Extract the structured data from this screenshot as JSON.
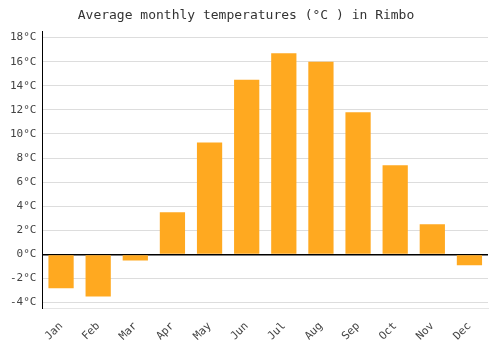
{
  "chart_data": {
    "type": "bar",
    "title": "Average monthly temperatures (°C ) in Rimbo",
    "categories": [
      "Jan",
      "Feb",
      "Mar",
      "Apr",
      "May",
      "Jun",
      "Jul",
      "Aug",
      "Sep",
      "Oct",
      "Nov",
      "Dec"
    ],
    "values": [
      -2.8,
      -3.5,
      -0.5,
      3.5,
      9.3,
      14.5,
      16.7,
      16.0,
      11.8,
      7.4,
      2.5,
      -0.9
    ],
    "color": "#FFA920",
    "ylim": [
      -4.5,
      18.5
    ],
    "yticks": [
      {
        "value": -4,
        "label": "-4°C"
      },
      {
        "value": -2,
        "label": "-2°C"
      },
      {
        "value": 0,
        "label": "0°C"
      },
      {
        "value": 2,
        "label": "2°C"
      },
      {
        "value": 4,
        "label": "4°C"
      },
      {
        "value": 6,
        "label": "6°C"
      },
      {
        "value": 8,
        "label": "8°C"
      },
      {
        "value": 10,
        "label": "10°C"
      },
      {
        "value": 12,
        "label": "12°C"
      },
      {
        "value": 14,
        "label": "14°C"
      },
      {
        "value": 16,
        "label": "16°C"
      },
      {
        "value": 18,
        "label": "18°C"
      }
    ],
    "grid": true
  }
}
